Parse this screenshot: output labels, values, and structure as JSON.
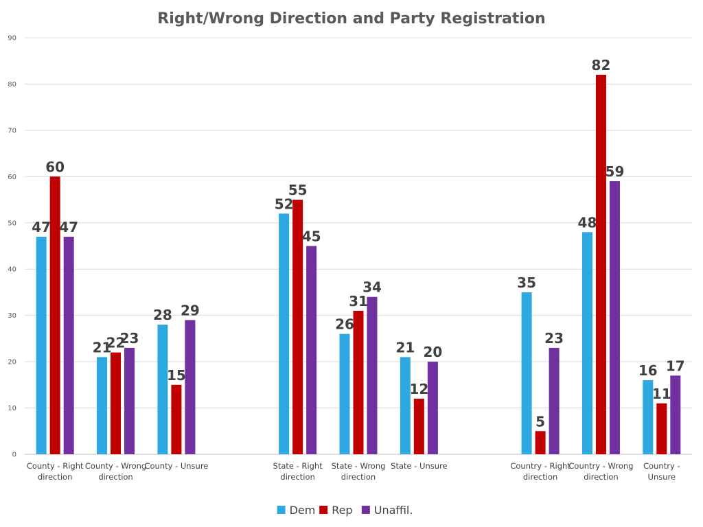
{
  "chart_data": {
    "type": "bar",
    "title": "Right/Wrong Direction and Party Registration",
    "xlabel": "",
    "ylabel": "",
    "ylim": [
      0,
      90
    ],
    "yticks": [
      0,
      10,
      20,
      30,
      40,
      50,
      60,
      70,
      80,
      90
    ],
    "grid": true,
    "legend_position": "bottom",
    "categories": [
      [
        "County - Right",
        "direction"
      ],
      [
        "County - Wrong",
        "direction"
      ],
      [
        "County - Unsure"
      ],
      [],
      [
        "State - Right",
        "direction"
      ],
      [
        "State - Wrong",
        "direction"
      ],
      [
        "State - Unsure"
      ],
      [],
      [
        "Country - Right",
        "direction"
      ],
      [
        "Country - Wrong",
        "direction"
      ],
      [
        "Country -",
        "Unsure"
      ]
    ],
    "series": [
      {
        "name": "Dem",
        "color": "#2EA8E0",
        "values": [
          47,
          21,
          28,
          null,
          52,
          26,
          21,
          null,
          35,
          48,
          16
        ]
      },
      {
        "name": "Rep",
        "color": "#C00000",
        "values": [
          60,
          22,
          15,
          null,
          55,
          31,
          12,
          null,
          5,
          82,
          11
        ]
      },
      {
        "name": "Unaffil.",
        "color": "#7030A0",
        "values": [
          47,
          23,
          29,
          null,
          45,
          34,
          20,
          null,
          23,
          59,
          17
        ]
      }
    ]
  }
}
